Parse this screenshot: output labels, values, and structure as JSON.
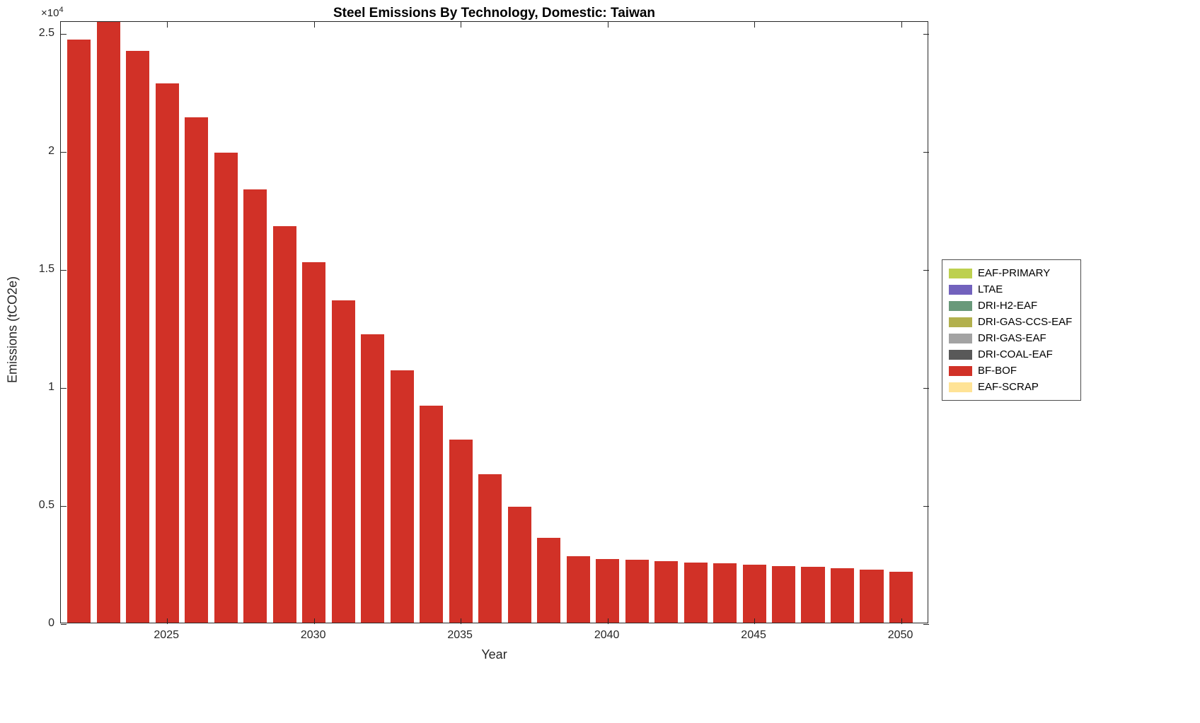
{
  "title": "Steel Emissions By Technology, Domestic: Taiwan",
  "axes": {
    "xlabel": "Year",
    "ylabel": "Emissions (tCO2e)",
    "y_multiplier_base": "×10",
    "y_multiplier_exp": "4"
  },
  "chart_data": {
    "type": "bar",
    "title": "Steel Emissions By Technology, Domestic: Taiwan",
    "xlabel": "Year",
    "ylabel": "Emissions (tCO2e)",
    "xlim": [
      2021.38,
      2050.95
    ],
    "ylim": [
      0,
      25500
    ],
    "grid": false,
    "legend_position": "right-outside",
    "x": [
      2022,
      2023,
      2024,
      2025,
      2026,
      2027,
      2028,
      2029,
      2030,
      2031,
      2032,
      2033,
      2034,
      2035,
      2036,
      2037,
      2038,
      2039,
      2040,
      2041,
      2042,
      2043,
      2044,
      2045,
      2046,
      2047,
      2048,
      2049,
      2050
    ],
    "series": [
      {
        "name": "BF-BOF",
        "color": "#d13127",
        "values": [
          24700,
          25450,
          24200,
          22850,
          21400,
          19900,
          18350,
          16800,
          15250,
          13650,
          12200,
          10700,
          9200,
          7750,
          6300,
          4900,
          3600,
          2800,
          2700,
          2650,
          2600,
          2550,
          2500,
          2450,
          2400,
          2350,
          2300,
          2250,
          2150
        ]
      }
    ],
    "xticks": [
      {
        "v": 2025,
        "label": "2025"
      },
      {
        "v": 2030,
        "label": "2030"
      },
      {
        "v": 2035,
        "label": "2035"
      },
      {
        "v": 2040,
        "label": "2040"
      },
      {
        "v": 2045,
        "label": "2045"
      },
      {
        "v": 2050,
        "label": "2050"
      }
    ],
    "yticks": [
      {
        "v": 0,
        "label": "0"
      },
      {
        "v": 5000,
        "label": "0.5"
      },
      {
        "v": 10000,
        "label": "1"
      },
      {
        "v": 15000,
        "label": "1.5"
      },
      {
        "v": 20000,
        "label": "2"
      },
      {
        "v": 25000,
        "label": "2.5"
      }
    ],
    "legend": [
      {
        "label": "EAF-PRIMARY",
        "color": "#bdd04f"
      },
      {
        "label": "LTAE",
        "color": "#7262bd"
      },
      {
        "label": "DRI-H2-EAF",
        "color": "#69997a"
      },
      {
        "label": "DRI-GAS-CCS-EAF",
        "color": "#b2b04d"
      },
      {
        "label": "DRI-GAS-EAF",
        "color": "#a3a3a3"
      },
      {
        "label": "DRI-COAL-EAF",
        "color": "#595959"
      },
      {
        "label": "BF-BOF",
        "color": "#d13127"
      },
      {
        "label": "EAF-SCRAP",
        "color": "#ffe396"
      }
    ]
  }
}
